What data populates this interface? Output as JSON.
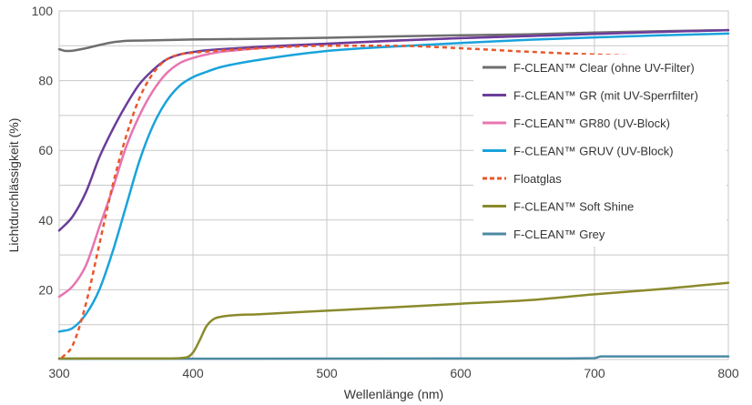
{
  "chart_data": {
    "type": "line",
    "xlabel": "Wellenlänge (nm)",
    "ylabel": "Lichtdurchlässigkeit (%)",
    "xlim": [
      300,
      800
    ],
    "ylim": [
      0,
      100
    ],
    "x_ticks": [
      300,
      400,
      500,
      600,
      700,
      800
    ],
    "y_ticks": [
      20,
      40,
      60,
      80,
      100
    ],
    "grid": true,
    "legend_position": "right",
    "series": [
      {
        "name": "F-CLEAN™ Clear (ohne UV-Filter)",
        "color": "#6e6e6e",
        "style": "solid",
        "points": [
          [
            300,
            89
          ],
          [
            305,
            88.5
          ],
          [
            310,
            88.6
          ],
          [
            320,
            89.3
          ],
          [
            330,
            90.2
          ],
          [
            340,
            91
          ],
          [
            350,
            91.4
          ],
          [
            360,
            91.5
          ],
          [
            400,
            91.8
          ],
          [
            450,
            92
          ],
          [
            500,
            92.3
          ],
          [
            550,
            92.7
          ],
          [
            600,
            93
          ],
          [
            650,
            93.3
          ],
          [
            700,
            93.8
          ],
          [
            750,
            94.2
          ],
          [
            800,
            94.5
          ]
        ]
      },
      {
        "name": "F-CLEAN™ GR (mit UV-Sperrfilter)",
        "color": "#6a3d99",
        "style": "solid",
        "points": [
          [
            300,
            37
          ],
          [
            310,
            41
          ],
          [
            320,
            48
          ],
          [
            330,
            58
          ],
          [
            340,
            66
          ],
          [
            350,
            73
          ],
          [
            360,
            79
          ],
          [
            370,
            83
          ],
          [
            380,
            86
          ],
          [
            390,
            87.5
          ],
          [
            400,
            88.2
          ],
          [
            410,
            88.7
          ],
          [
            420,
            89
          ],
          [
            450,
            89.7
          ],
          [
            500,
            90.6
          ],
          [
            550,
            91.5
          ],
          [
            600,
            92.2
          ],
          [
            650,
            92.8
          ],
          [
            700,
            93.4
          ],
          [
            750,
            94
          ],
          [
            800,
            94.5
          ]
        ]
      },
      {
        "name": "F-CLEAN™ GR80 (UV-Block)",
        "color": "#e875b0",
        "style": "solid",
        "points": [
          [
            300,
            18
          ],
          [
            310,
            21
          ],
          [
            320,
            27
          ],
          [
            330,
            38
          ],
          [
            340,
            49
          ],
          [
            350,
            61
          ],
          [
            360,
            70
          ],
          [
            370,
            77
          ],
          [
            380,
            82
          ],
          [
            390,
            85
          ],
          [
            400,
            86.5
          ],
          [
            410,
            87.5
          ],
          [
            420,
            88.2
          ],
          [
            450,
            89.3
          ],
          [
            500,
            90.5
          ],
          [
            550,
            91.4
          ],
          [
            600,
            92.2
          ],
          [
            650,
            92.8
          ],
          [
            700,
            93.4
          ],
          [
            750,
            94
          ],
          [
            800,
            94.5
          ]
        ]
      },
      {
        "name": "F-CLEAN™ GRUV (UV-Block)",
        "color": "#19a3dc",
        "style": "solid",
        "points": [
          [
            300,
            8
          ],
          [
            310,
            9
          ],
          [
            320,
            13
          ],
          [
            330,
            20
          ],
          [
            340,
            31
          ],
          [
            350,
            44
          ],
          [
            360,
            57
          ],
          [
            370,
            67
          ],
          [
            380,
            74
          ],
          [
            390,
            78.5
          ],
          [
            400,
            81
          ],
          [
            410,
            82.5
          ],
          [
            420,
            83.8
          ],
          [
            450,
            86
          ],
          [
            500,
            88.5
          ],
          [
            550,
            89.8
          ],
          [
            600,
            90.8
          ],
          [
            650,
            91.7
          ],
          [
            700,
            92.4
          ],
          [
            750,
            93
          ],
          [
            800,
            93.5
          ]
        ]
      },
      {
        "name": "Floatglas",
        "color": "#e8572b",
        "style": "dashed",
        "points": [
          [
            302,
            0.5
          ],
          [
            310,
            4
          ],
          [
            320,
            16
          ],
          [
            330,
            33
          ],
          [
            340,
            50
          ],
          [
            350,
            64
          ],
          [
            360,
            75
          ],
          [
            370,
            82
          ],
          [
            380,
            86
          ],
          [
            390,
            87.5
          ],
          [
            400,
            88
          ],
          [
            450,
            89.3
          ],
          [
            500,
            90
          ],
          [
            550,
            90
          ],
          [
            600,
            89.3
          ],
          [
            650,
            88.3
          ],
          [
            700,
            87.5
          ],
          [
            750,
            86.8
          ],
          [
            800,
            85.5
          ]
        ]
      },
      {
        "name": "F-CLEAN™ Soft Shine",
        "color": "#8a8a2c",
        "style": "solid",
        "points": [
          [
            300,
            0.3
          ],
          [
            380,
            0.3
          ],
          [
            395,
            0.6
          ],
          [
            400,
            2
          ],
          [
            405,
            5.5
          ],
          [
            410,
            9.5
          ],
          [
            415,
            11.5
          ],
          [
            420,
            12.2
          ],
          [
            450,
            13
          ],
          [
            500,
            14
          ],
          [
            550,
            15
          ],
          [
            600,
            16
          ],
          [
            650,
            17
          ],
          [
            700,
            18.7
          ],
          [
            750,
            20.2
          ],
          [
            800,
            22
          ]
        ]
      },
      {
        "name": "F-CLEAN™ Grey",
        "color": "#4c8aa3",
        "style": "solid",
        "points": [
          [
            300,
            0.2
          ],
          [
            650,
            0.3
          ],
          [
            700,
            0.4
          ],
          [
            705,
            0.9
          ],
          [
            800,
            0.9
          ]
        ]
      }
    ]
  }
}
